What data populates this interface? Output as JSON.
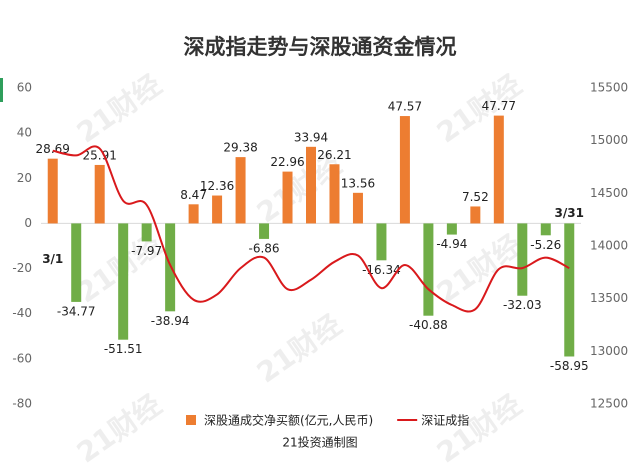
{
  "chart_data": {
    "type": "bar_line",
    "title": "深成指走势与深股通资金情况",
    "footer": "21投资通制图",
    "watermark": "21财经",
    "categories": [
      "3/1",
      null,
      null,
      null,
      null,
      null,
      null,
      null,
      null,
      null,
      null,
      null,
      null,
      null,
      null,
      null,
      null,
      null,
      null,
      null,
      null,
      null,
      "3/31"
    ],
    "series": [
      {
        "name": "深股通成交净买额(亿元,人民币)",
        "type": "bar",
        "color": "#ed7d31",
        "negative_color": "#70ad47",
        "values": [
          28.69,
          -34.77,
          25.91,
          -51.51,
          -7.97,
          -38.94,
          8.47,
          12.36,
          29.38,
          -6.86,
          22.96,
          33.94,
          26.21,
          13.56,
          -16.34,
          47.57,
          -40.88,
          -4.94,
          7.52,
          47.77,
          -32.03,
          -5.26,
          -58.95
        ]
      },
      {
        "name": "深证成指",
        "type": "line",
        "axis": "y2",
        "color": "#d9191c",
        "values": [
          14905,
          14860,
          14925,
          14430,
          14390,
          13820,
          13490,
          13540,
          13790,
          13890,
          13590,
          13680,
          13850,
          13910,
          13600,
          13820,
          13590,
          13440,
          13400,
          13780,
          13790,
          13890,
          13790
        ]
      }
    ],
    "ylim": [
      -80,
      60
    ],
    "yticks": [
      -80,
      -60,
      -40,
      -20,
      0,
      20,
      40,
      60
    ],
    "y2lim": [
      12500,
      15500
    ],
    "y2ticks": [
      12500,
      13000,
      13500,
      14000,
      14500,
      15000,
      15500
    ],
    "grid": false
  }
}
